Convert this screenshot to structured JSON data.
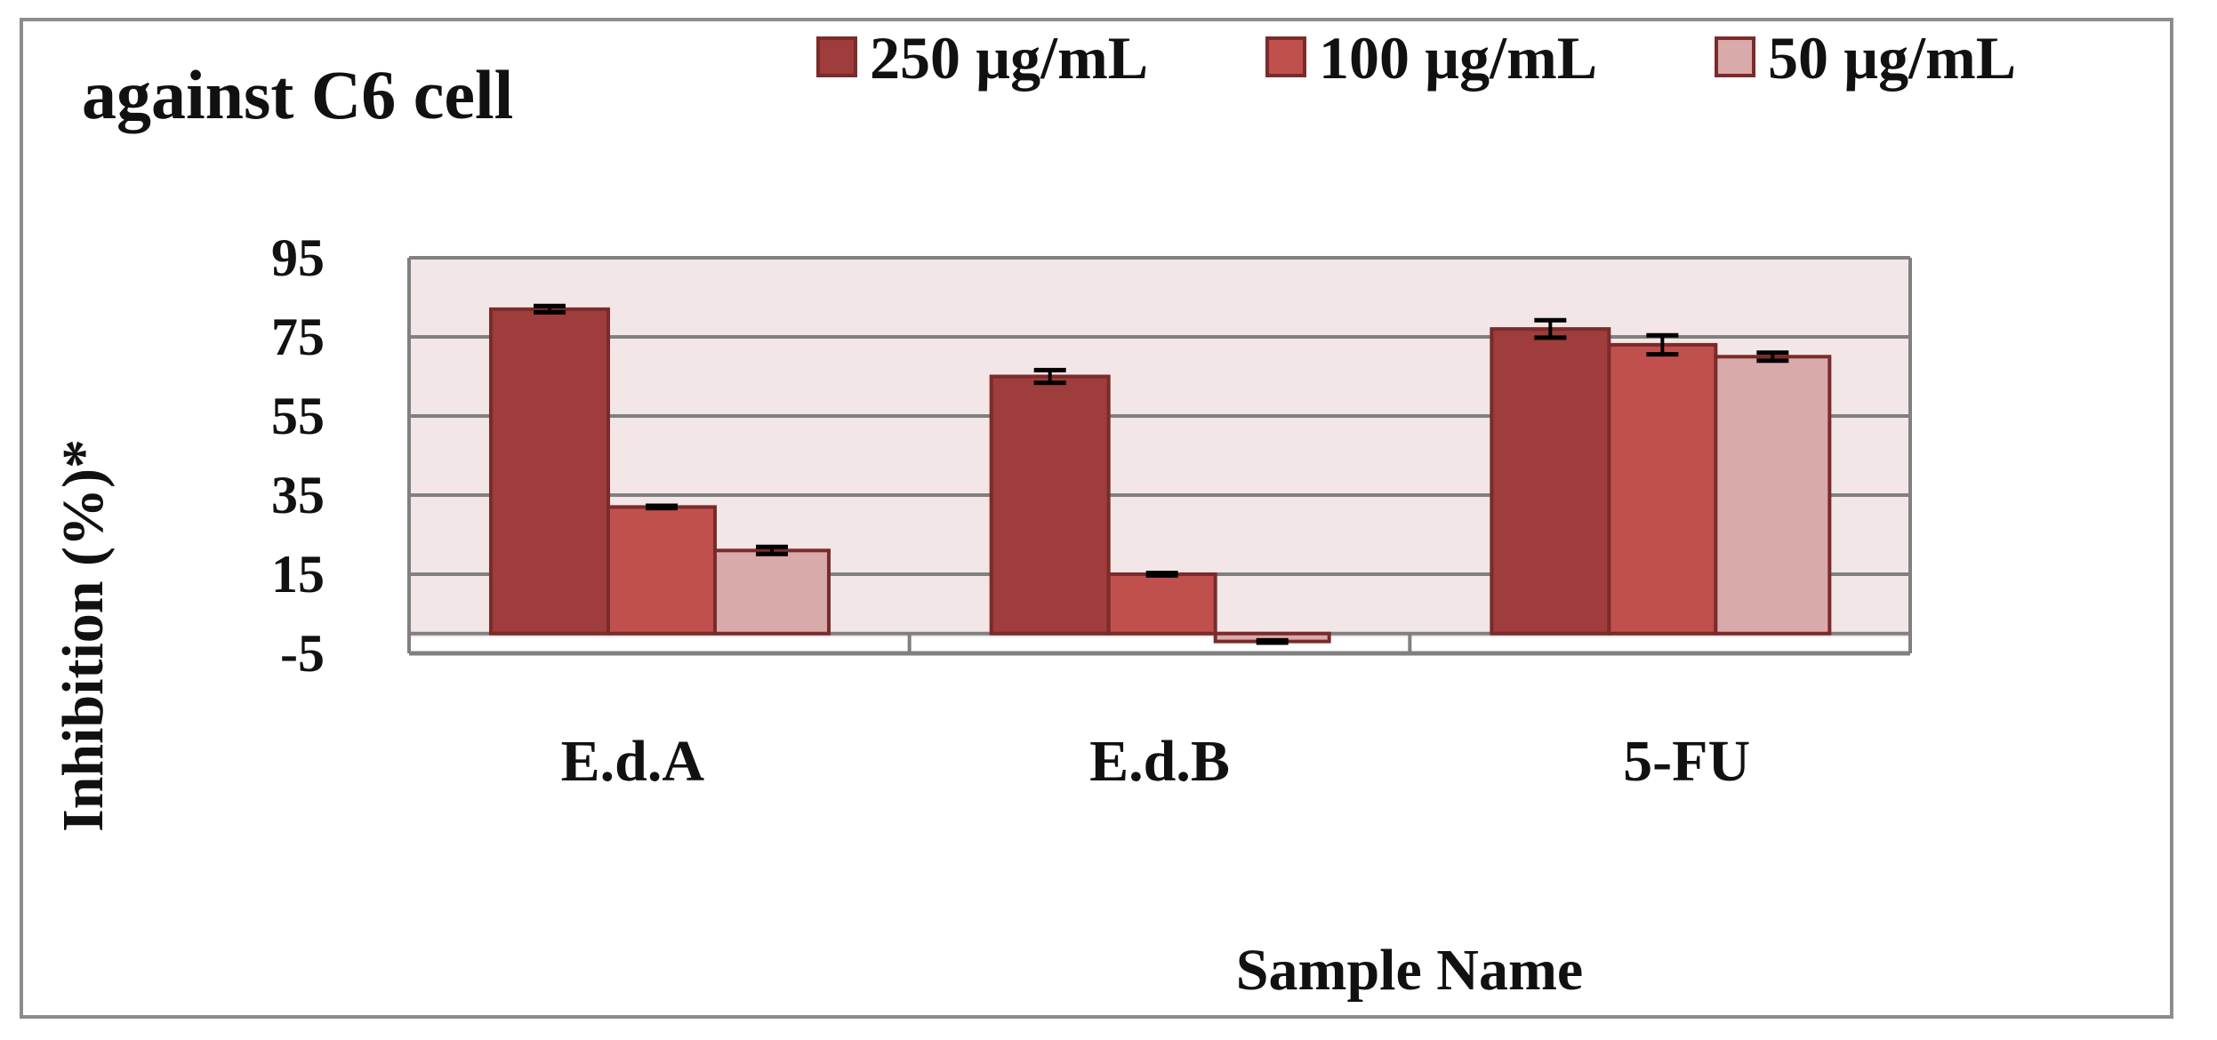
{
  "chart_data": {
    "type": "bar",
    "title": "against C6 cell",
    "xlabel": "Sample Name",
    "ylabel": "Inhibition (%)*",
    "categories": [
      "E.d.A",
      "E.d.B",
      "5-FU"
    ],
    "series": [
      {
        "name": "250 µg/mL",
        "color": "#9e3d3b",
        "values": [
          82,
          65,
          77
        ],
        "errors": [
          0.8,
          1.6,
          2.2
        ]
      },
      {
        "name": "100 µg/mL",
        "color": "#c0504d",
        "values": [
          32,
          15,
          73
        ],
        "errors": [
          0.3,
          0.3,
          2.4
        ]
      },
      {
        "name": "50 µg/mL",
        "color": "#d9aaaa",
        "values": [
          21,
          -2,
          70
        ],
        "errors": [
          0.9,
          0.3,
          1.0
        ]
      }
    ],
    "yticks": [
      "95",
      "75",
      "55",
      "35",
      "15",
      "-5"
    ],
    "ylim": [
      -5,
      95
    ],
    "grid": true,
    "legend_position": "top"
  },
  "colors": {
    "plot_background": "#f2e6e6",
    "gridline": "#808080",
    "bar_edge": "#7a2b2a"
  }
}
